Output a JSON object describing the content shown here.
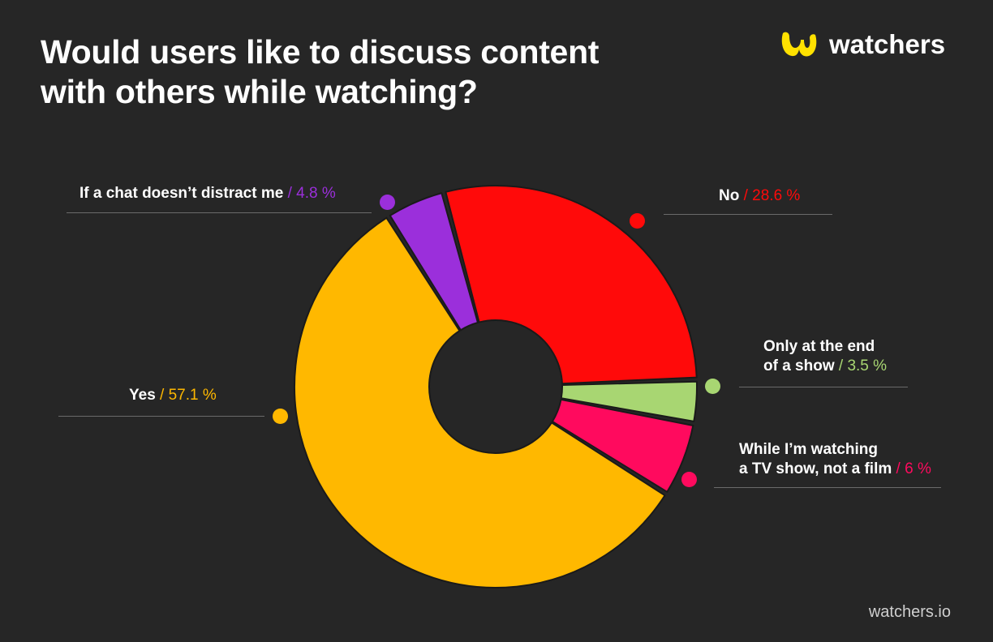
{
  "title": "Would users like to discuss content with others while watching?",
  "brand": {
    "name": "watchers",
    "logo_color": "#FFE100",
    "footer": "watchers.io"
  },
  "chart_data": {
    "type": "pie",
    "variant": "donut",
    "title": "Would users like to discuss content with others while watching?",
    "slices": [
      {
        "label": "No",
        "value": 28.6,
        "pct_text": "/ 28.6 %",
        "color": "#FF0A0A"
      },
      {
        "label": "Only at the end of a show",
        "label_lines": [
          "Only at the end",
          "of a show"
        ],
        "value": 3.5,
        "pct_text": "/ 3.5 %",
        "color": "#A8D672"
      },
      {
        "label": "While I'm watching a TV show, not a film",
        "label_lines": [
          "While I’m watching",
          "a TV show, not a film"
        ],
        "value": 6,
        "pct_text": "/ 6 %",
        "color": "#FF0A5E"
      },
      {
        "label": "Yes",
        "value": 57.1,
        "pct_text": "/ 57.1 %",
        "color": "#FFB800"
      },
      {
        "label": "If a chat doesn’t distract me",
        "value": 4.8,
        "pct_text": "/ 4.8 %",
        "color": "#9B2FDB"
      }
    ]
  }
}
